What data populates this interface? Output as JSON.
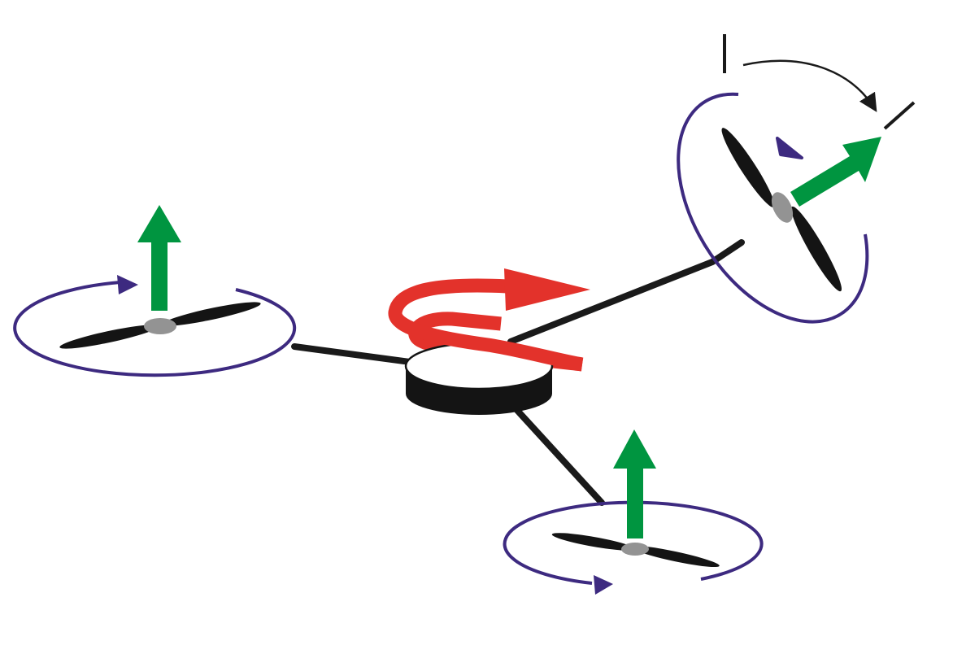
{
  "diagram": {
    "subject": "tricopter-yaw-tilt",
    "labels": []
  },
  "colors": {
    "background": "#ffffff",
    "arm": "#1a1a1a",
    "blade": "#141414",
    "hub": "#939393",
    "rotor_ring": "#3d2a80",
    "thrust_arrow": "#009540",
    "yaw_arrow": "#e3322b",
    "tilt_arrow": "#1a1a1a"
  },
  "icons": {
    "rotor_ring": "circular-rotation-icon",
    "thrust": "up-arrow-icon",
    "yaw": "curved-arrow-icon",
    "tilt": "curved-arrow-icon"
  }
}
